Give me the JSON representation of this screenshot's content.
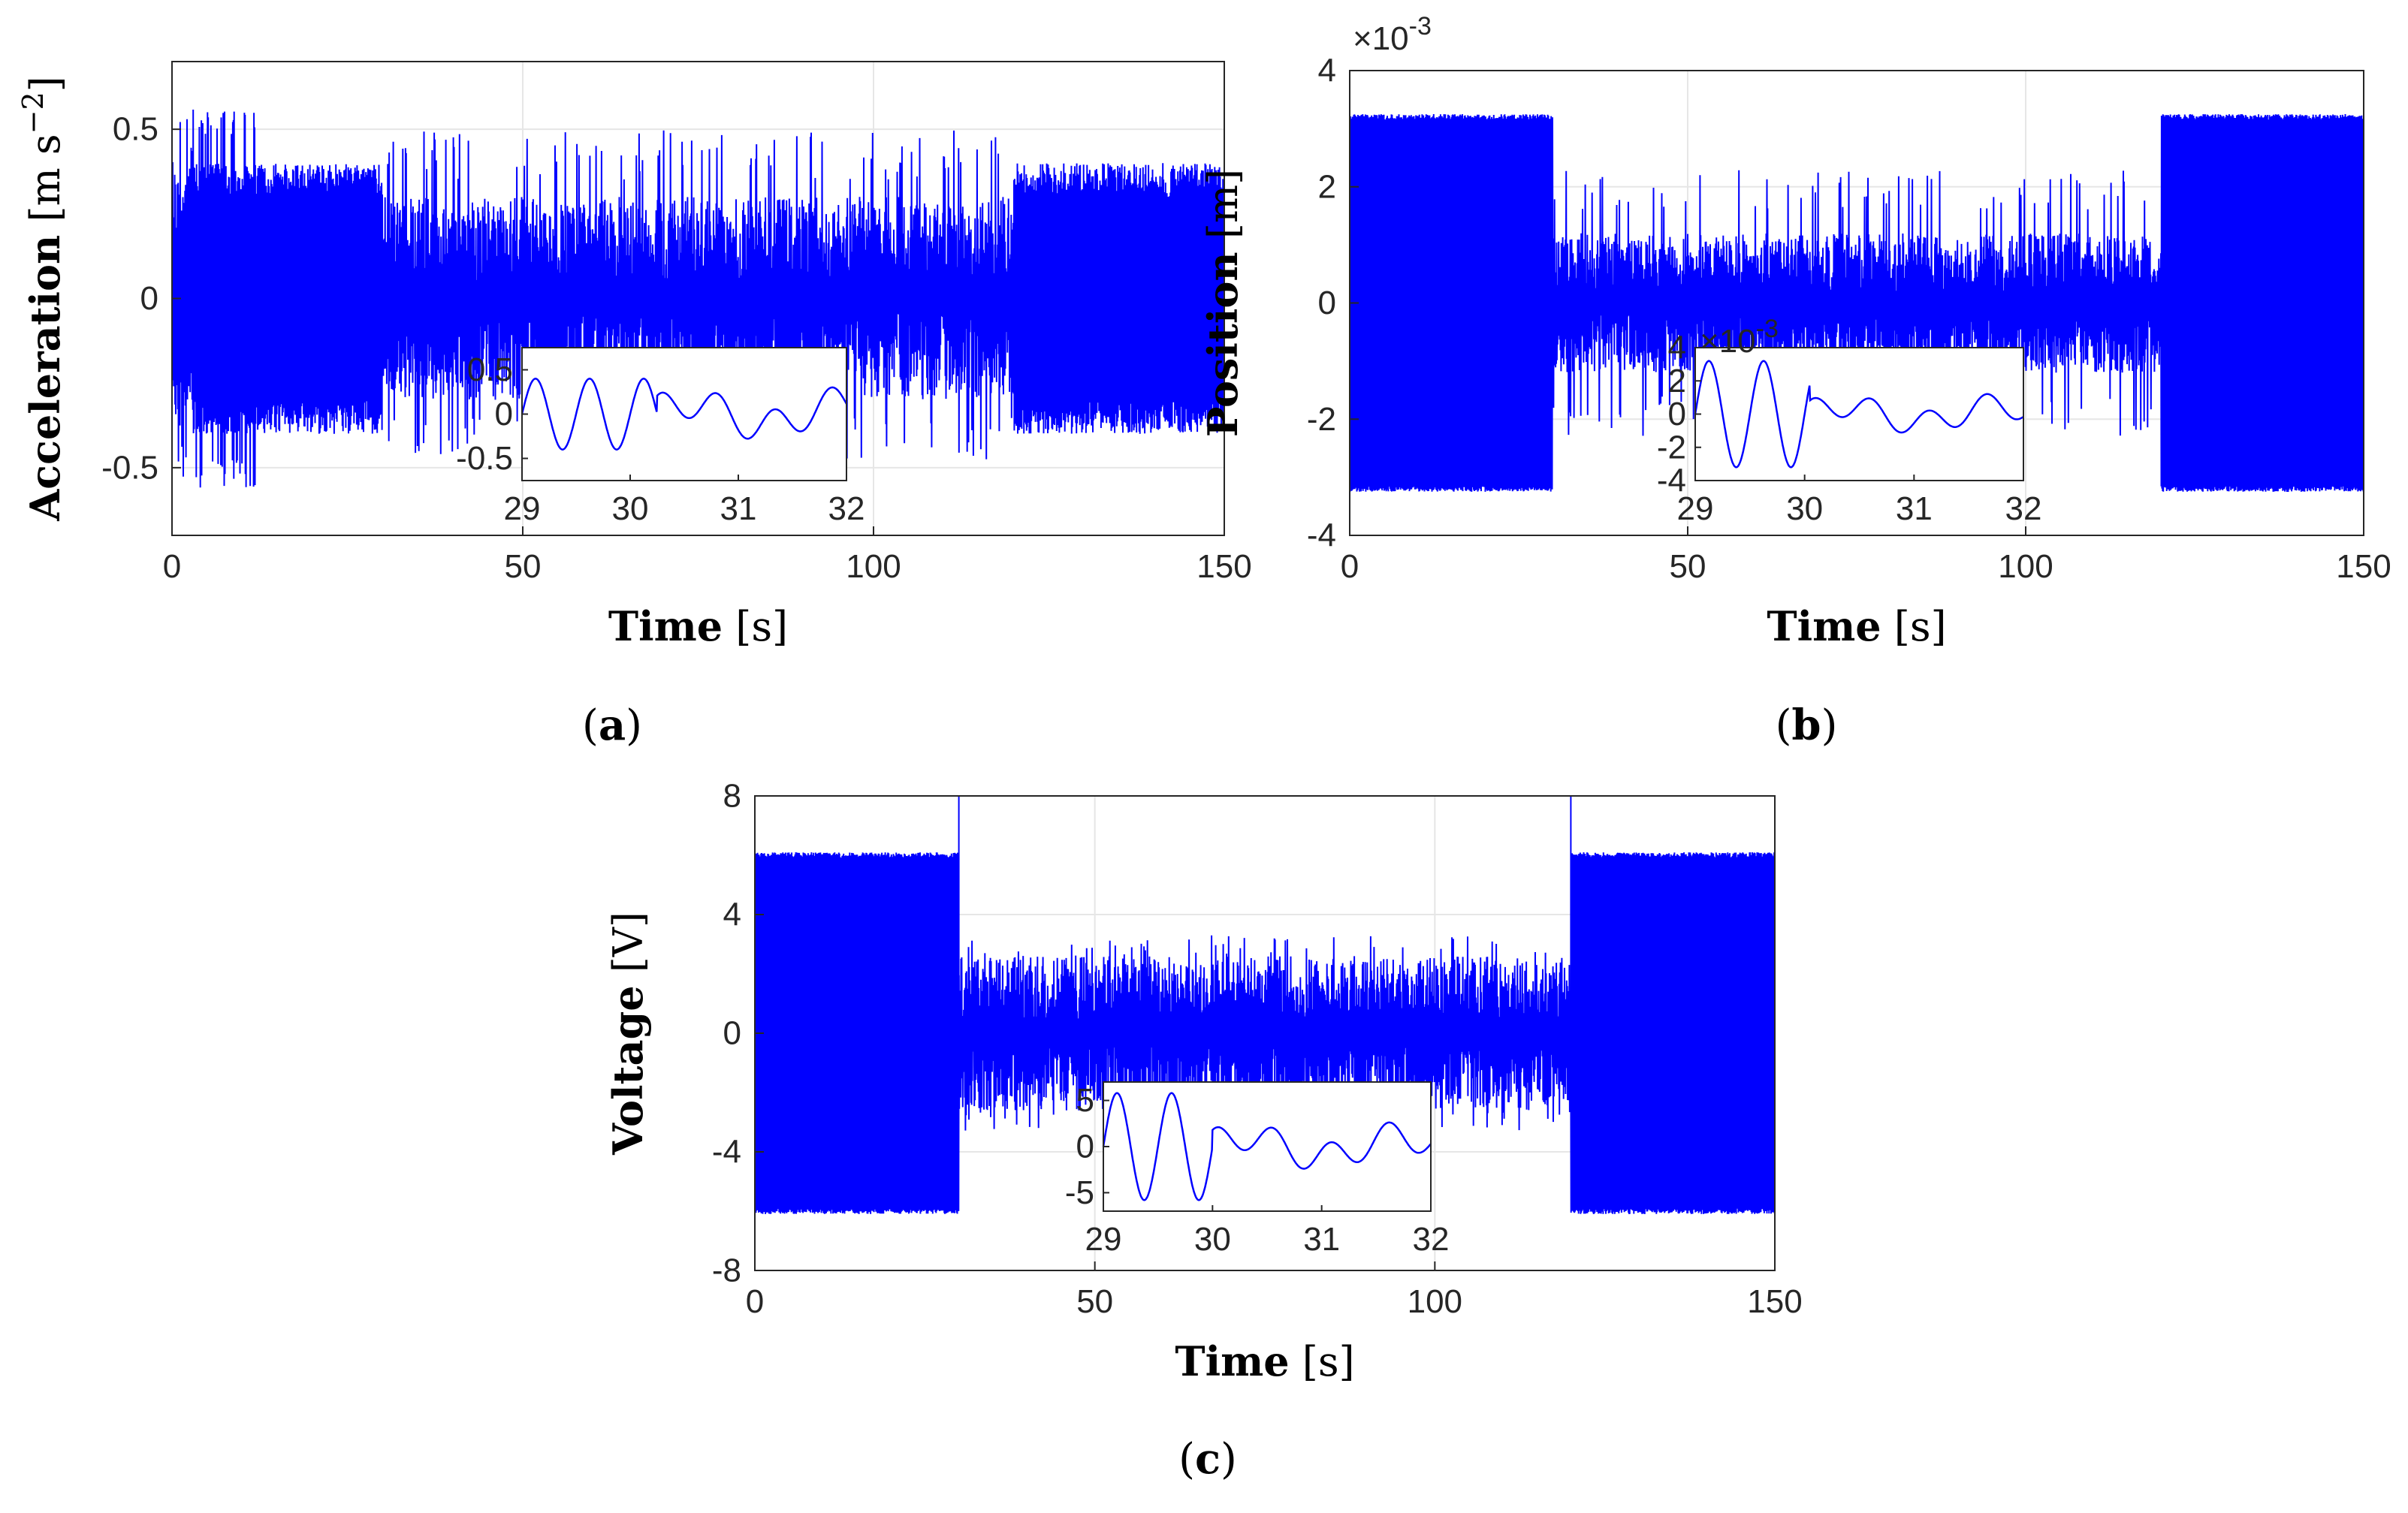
{
  "chart_data": [
    {
      "type": "line",
      "panel_label": "a",
      "ylabel": "Acceleration",
      "yunit_pre": "m s",
      "yunit_exp": "−2",
      "xlabel": "Time",
      "xunit": "s",
      "xlim": [
        0,
        150
      ],
      "ylim": [
        -0.7,
        0.7
      ],
      "xticks": [
        0,
        50,
        100,
        150
      ],
      "xtick_labels": [
        "0",
        "50",
        "100",
        "150"
      ],
      "yticks": [
        -0.5,
        0,
        0.5
      ],
      "ytick_labels": [
        "-0.5",
        "0",
        "0.5"
      ],
      "grid": true,
      "series": [
        {
          "color": "#0000ff",
          "segments": [
            {
              "t0": 0,
              "t1": 30,
              "amplitude": 0.4,
              "peak": 0.56,
              "style": "periodic"
            },
            {
              "t0": 30,
              "t1": 120,
              "amplitude": 0.3,
              "peak": 0.5,
              "style": "noisy"
            },
            {
              "t0": 120,
              "t1": 150,
              "amplitude": 0.4,
              "peak": 0.53,
              "style": "periodic"
            }
          ]
        }
      ],
      "inset": {
        "xlim": [
          29,
          32
        ],
        "ylim": [
          -0.75,
          0.75
        ],
        "xticks": [
          29,
          30,
          31,
          32
        ],
        "xtick_labels": [
          "29",
          "30",
          "31",
          "32"
        ],
        "yticks": [
          -0.5,
          0,
          0.5
        ],
        "ytick_labels": [
          "-0.5",
          "0",
          "0.5"
        ],
        "exponent": "",
        "switch_time": 30.25,
        "amp_before": 0.4,
        "amp_after": 0.3
      }
    },
    {
      "type": "line",
      "panel_label": "b",
      "ylabel": "Position",
      "yunit_pre": "m",
      "yunit_exp": "",
      "xlabel": "Time",
      "xunit": "s",
      "xlim": [
        0,
        150
      ],
      "ylim": [
        -4,
        4
      ],
      "y_multiplier": "×10",
      "y_multiplier_exp": "-3",
      "xticks": [
        0,
        50,
        100,
        150
      ],
      "xtick_labels": [
        "0",
        "50",
        "100",
        "150"
      ],
      "yticks": [
        -4,
        -2,
        0,
        2,
        4
      ],
      "ytick_labels": [
        "-4",
        "-2",
        "0",
        "2",
        "4"
      ],
      "grid": true,
      "series": [
        {
          "color": "#0000ff",
          "segments": [
            {
              "t0": 0,
              "t1": 30,
              "amplitude": 3.25,
              "peak": 3.25,
              "style": "periodic"
            },
            {
              "t0": 30,
              "t1": 120,
              "amplitude": 1.2,
              "peak": 2.3,
              "style": "noisy"
            },
            {
              "t0": 120,
              "t1": 150,
              "amplitude": 3.25,
              "peak": 3.35,
              "style": "periodic"
            }
          ]
        }
      ],
      "inset": {
        "xlim": [
          29,
          32
        ],
        "ylim": [
          -4,
          4
        ],
        "xticks": [
          29,
          30,
          31,
          32
        ],
        "xtick_labels": [
          "29",
          "30",
          "31",
          "32"
        ],
        "yticks": [
          -4,
          -2,
          0,
          2,
          4
        ],
        "ytick_labels": [
          "-4",
          "-2",
          "0",
          "2",
          "4"
        ],
        "exponent": "×10",
        "exponent_power": "-3",
        "switch_time": 30.05,
        "amp_before": 3.2,
        "amp_after": 1.2
      }
    },
    {
      "type": "line",
      "panel_label": "c",
      "ylabel": "Voltage",
      "yunit_pre": "V",
      "yunit_exp": "",
      "xlabel": "Time",
      "xunit": "s",
      "xlim": [
        0,
        150
      ],
      "ylim": [
        -8,
        8
      ],
      "xticks": [
        0,
        50,
        100,
        150
      ],
      "xtick_labels": [
        "0",
        "50",
        "100",
        "150"
      ],
      "yticks": [
        -8,
        -4,
        0,
        4,
        8
      ],
      "ytick_labels": [
        "-8",
        "-4",
        "0",
        "4",
        "8"
      ],
      "grid": true,
      "series": [
        {
          "color": "#0000ff",
          "segments": [
            {
              "t0": 0,
              "t1": 30,
              "amplitude": 6.1,
              "peak": 6.2,
              "style": "periodic"
            },
            {
              "t0": 30,
              "t1": 120,
              "amplitude": 2.6,
              "peak": 3.3,
              "style": "noisy"
            },
            {
              "t0": 120,
              "t1": 150,
              "amplitude": 6.1,
              "peak": 6.3,
              "style": "periodic"
            }
          ],
          "spikes": [
            30,
            120
          ],
          "spike_value": 8
        }
      ],
      "inset": {
        "xlim": [
          29,
          32
        ],
        "ylim": [
          -7,
          7
        ],
        "xticks": [
          29,
          30,
          31,
          32
        ],
        "xtick_labels": [
          "29",
          "30",
          "31",
          "32"
        ],
        "yticks": [
          -5,
          0,
          5
        ],
        "ytick_labels": [
          "-5",
          "0",
          "5"
        ],
        "exponent": "",
        "switch_time": 30.0,
        "amp_before": 5.8,
        "amp_after": 2.6
      }
    }
  ]
}
